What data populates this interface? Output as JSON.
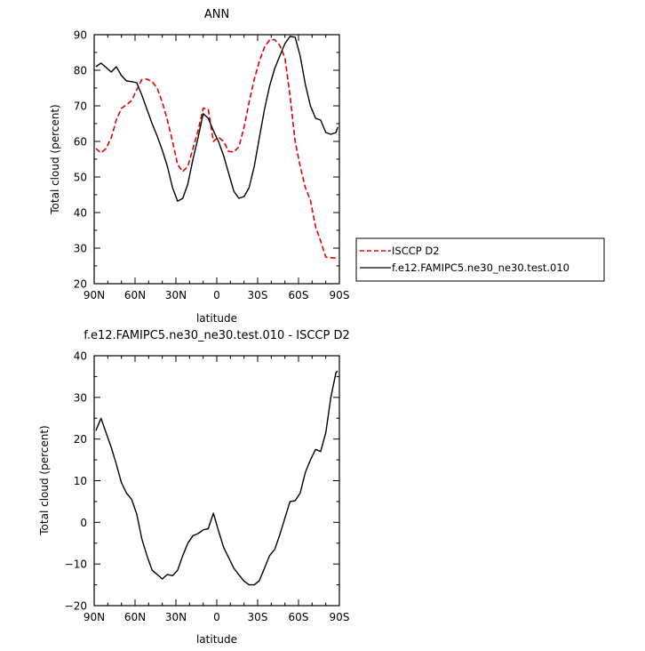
{
  "chart_data": [
    {
      "type": "line",
      "title": "ANN",
      "xlabel": "latitude",
      "ylabel": "Total cloud (percent)",
      "xlim": [
        90,
        -90
      ],
      "ylim": [
        20,
        90
      ],
      "xticks": [
        90,
        60,
        30,
        0,
        -30,
        -60,
        -90
      ],
      "xticklabels": [
        "90N",
        "60N",
        "30N",
        "0",
        "30S",
        "60S",
        "90S"
      ],
      "yticks": [
        20,
        30,
        40,
        50,
        60,
        70,
        80,
        90
      ],
      "yticklabels": [
        "20",
        "30",
        "40",
        "50",
        "60",
        "70",
        "80",
        "90"
      ],
      "grid": false,
      "legend_position": "outside-right",
      "series": [
        {
          "name": "ISCCP D2",
          "color": "#e00000",
          "style": "dashed",
          "x": [
            88.75,
            85,
            81.25,
            77.5,
            73.75,
            70,
            66.25,
            62.5,
            58.75,
            55,
            51.25,
            47.5,
            43.75,
            40,
            36.25,
            32.5,
            28.75,
            25,
            21.25,
            17.5,
            13.75,
            10,
            6.25,
            2.5,
            -1.25,
            -5,
            -8.75,
            -12.5,
            -16.25,
            -20,
            -23.75,
            -27.5,
            -31.25,
            -35,
            -38.75,
            -42.5,
            -46.25,
            -50,
            -53.75,
            -57.5,
            -61.25,
            -65,
            -68.75,
            -72.5,
            -76.25,
            -80,
            -83.75,
            -87.5,
            -88.75
          ],
          "values": [
            58,
            56.8,
            58,
            61,
            66,
            69.3,
            70.3,
            71.5,
            74.5,
            77.4,
            77.5,
            76.8,
            75,
            71,
            66,
            60,
            53.5,
            51.5,
            53,
            58,
            63,
            69.3,
            69,
            60,
            61.2,
            60,
            57.2,
            57,
            58.5,
            64,
            71,
            77.5,
            82.5,
            86.5,
            88.5,
            88.6,
            87,
            83.5,
            73,
            60,
            53,
            47,
            43.5,
            36,
            32,
            27.5,
            27.3,
            27.2,
            27.2
          ]
        },
        {
          "name": "f.e12.FAMIPC5.ne30_ne30.test.010",
          "color": "#000000",
          "style": "solid",
          "x": [
            88.75,
            85,
            81.25,
            77.5,
            73.75,
            70,
            66.25,
            62.5,
            58.75,
            55,
            51.25,
            47.5,
            43.75,
            40,
            36.25,
            32.5,
            28.75,
            25,
            21.25,
            17.5,
            13.75,
            10,
            6.25,
            2.5,
            -1.25,
            -5,
            -8.75,
            -12.5,
            -16.25,
            -20,
            -23.75,
            -27.5,
            -31.25,
            -35,
            -38.75,
            -42.5,
            -46.25,
            -50,
            -53.75,
            -57.5,
            -61.25,
            -65,
            -68.75,
            -72.5,
            -76.25,
            -80,
            -83.75,
            -87.5,
            -88.75
          ],
          "values": [
            81,
            82,
            80.8,
            79.5,
            81,
            78.5,
            77,
            76.8,
            76.5,
            73,
            69,
            65,
            61.5,
            57.5,
            53,
            47,
            43.2,
            44,
            48,
            55,
            61,
            67.8,
            66.5,
            63,
            60,
            56,
            51,
            46,
            44,
            44.5,
            47,
            53,
            61,
            69,
            75.5,
            80.5,
            84,
            87.5,
            89.5,
            89.3,
            84,
            76,
            70,
            66.5,
            66,
            62.5,
            62,
            62.5,
            64
          ]
        }
      ]
    },
    {
      "type": "line",
      "title": "f.e12.FAMIPC5.ne30_ne30.test.010 - ISCCP D2",
      "xlabel": "latitude",
      "ylabel": "Total cloud (percent)",
      "xlim": [
        90,
        -90
      ],
      "ylim": [
        -20,
        40
      ],
      "xticks": [
        90,
        60,
        30,
        0,
        -30,
        -60,
        -90
      ],
      "xticklabels": [
        "90N",
        "60N",
        "30N",
        "0",
        "30S",
        "60S",
        "90S"
      ],
      "yticks": [
        -20,
        -10,
        0,
        10,
        20,
        30,
        40
      ],
      "yticklabels": [
        "−20",
        "−10",
        "0",
        "10",
        "20",
        "30",
        "40"
      ],
      "grid": false,
      "series": [
        {
          "color": "#000000",
          "style": "solid",
          "x": [
            88.75,
            85,
            81.25,
            77.5,
            73.75,
            70,
            66.25,
            62.5,
            58.75,
            55,
            51.25,
            47.5,
            43.75,
            40,
            36.25,
            32.5,
            28.75,
            25,
            21.25,
            17.5,
            13.75,
            10,
            6.25,
            2.5,
            -1.25,
            -5,
            -8.75,
            -12.5,
            -16.25,
            -20,
            -23.75,
            -27.5,
            -31.25,
            -35,
            -38.75,
            -42.5,
            -46.25,
            -50,
            -53.75,
            -57.5,
            -61.25,
            -65,
            -68.75,
            -72.5,
            -76.25,
            -80,
            -83.75,
            -87.5,
            -88.75
          ],
          "values": [
            22,
            25,
            21.5,
            18,
            14,
            9.5,
            7,
            5.5,
            2,
            -4,
            -8,
            -11.5,
            -12.5,
            -13.6,
            -12.5,
            -12.8,
            -11.5,
            -8,
            -5,
            -3.2,
            -2.7,
            -1.8,
            -1.5,
            2.2,
            -2,
            -6,
            -8.5,
            -11,
            -12.6,
            -14.1,
            -15,
            -15,
            -14,
            -11,
            -8,
            -6.5,
            -3,
            1,
            5,
            5.2,
            7,
            12,
            15,
            17.5,
            17,
            21.5,
            30,
            36,
            36.3
          ]
        }
      ]
    }
  ]
}
